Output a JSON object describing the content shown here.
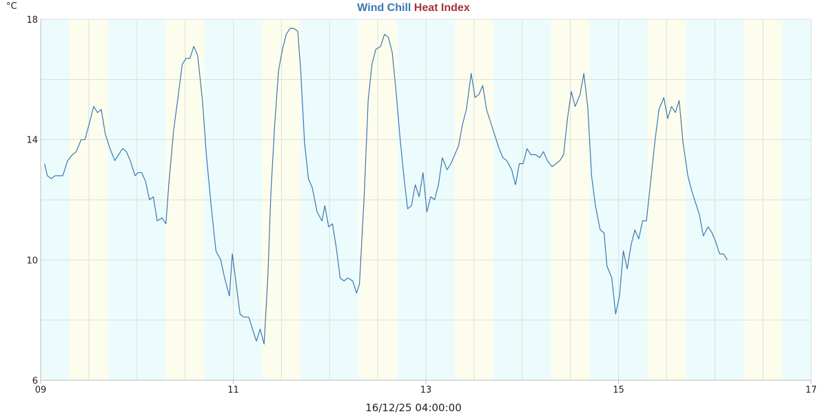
{
  "chart_data": {
    "type": "line",
    "title_parts": [
      {
        "text": "Wind Chill",
        "color": "#3a76b0"
      },
      {
        "text": "Heat Index",
        "color": "#a83238"
      }
    ],
    "y_unit": "°C",
    "timestamp": "16/12/25 04:00:00",
    "ylim": [
      6,
      18
    ],
    "yticks": [
      6,
      10,
      14,
      18
    ],
    "xlim_days": [
      9,
      17
    ],
    "xticks": [
      {
        "day": 9,
        "label": "09"
      },
      {
        "day": 11,
        "label": "11"
      },
      {
        "day": 13,
        "label": "13"
      },
      {
        "day": 15,
        "label": "15"
      },
      {
        "day": 17,
        "label": "17"
      }
    ],
    "grid": true,
    "day_bands_days": [
      9.3,
      9.7,
      10.3,
      10.7,
      11.3,
      11.7,
      12.3,
      12.7,
      13.3,
      13.7,
      14.3,
      14.7,
      15.3,
      15.7,
      16.3,
      16.7
    ],
    "colors": {
      "night": "#ecfcfc",
      "day": "#fdfdee",
      "line": "#3a76b0",
      "grid": "#dddddd",
      "axis": "#bbbbbb"
    },
    "series": [
      {
        "name": "Wind Chill",
        "color": "#3a76b0",
        "points": [
          [
            9.04,
            13.2
          ],
          [
            9.07,
            12.8
          ],
          [
            9.11,
            12.7
          ],
          [
            9.15,
            12.8
          ],
          [
            9.19,
            12.8
          ],
          [
            9.23,
            12.8
          ],
          [
            9.28,
            13.3
          ],
          [
            9.33,
            13.5
          ],
          [
            9.37,
            13.6
          ],
          [
            9.42,
            14.0
          ],
          [
            9.46,
            14.0
          ],
          [
            9.51,
            14.6
          ],
          [
            9.55,
            15.1
          ],
          [
            9.59,
            14.9
          ],
          [
            9.63,
            15.0
          ],
          [
            9.67,
            14.2
          ],
          [
            9.72,
            13.7
          ],
          [
            9.77,
            13.3
          ],
          [
            9.81,
            13.5
          ],
          [
            9.85,
            13.7
          ],
          [
            9.89,
            13.6
          ],
          [
            9.93,
            13.3
          ],
          [
            9.98,
            12.8
          ],
          [
            10.01,
            12.9
          ],
          [
            10.05,
            12.9
          ],
          [
            10.09,
            12.6
          ],
          [
            10.13,
            12.0
          ],
          [
            10.17,
            12.1
          ],
          [
            10.21,
            11.3
          ],
          [
            10.26,
            11.4
          ],
          [
            10.3,
            11.2
          ],
          [
            10.33,
            12.5
          ],
          [
            10.38,
            14.3
          ],
          [
            10.43,
            15.5
          ],
          [
            10.47,
            16.5
          ],
          [
            10.51,
            16.7
          ],
          [
            10.55,
            16.7
          ],
          [
            10.59,
            17.1
          ],
          [
            10.63,
            16.8
          ],
          [
            10.68,
            15.3
          ],
          [
            10.72,
            13.5
          ],
          [
            10.77,
            11.8
          ],
          [
            10.82,
            10.3
          ],
          [
            10.87,
            10.0
          ],
          [
            10.91,
            9.4
          ],
          [
            10.96,
            8.8
          ],
          [
            10.99,
            10.2
          ],
          [
            11.03,
            9.2
          ],
          [
            11.07,
            8.2
          ],
          [
            11.11,
            8.1
          ],
          [
            11.16,
            8.1
          ],
          [
            11.2,
            7.7
          ],
          [
            11.24,
            7.3
          ],
          [
            11.28,
            7.7
          ],
          [
            11.32,
            7.2
          ],
          [
            11.36,
            9.5
          ],
          [
            11.39,
            12.2
          ],
          [
            11.43,
            14.5
          ],
          [
            11.47,
            16.3
          ],
          [
            11.51,
            17.0
          ],
          [
            11.55,
            17.5
          ],
          [
            11.59,
            17.7
          ],
          [
            11.63,
            17.7
          ],
          [
            11.67,
            17.6
          ],
          [
            11.7,
            16.3
          ],
          [
            11.74,
            13.9
          ],
          [
            11.78,
            12.7
          ],
          [
            11.82,
            12.4
          ],
          [
            11.87,
            11.6
          ],
          [
            11.92,
            11.3
          ],
          [
            11.95,
            11.8
          ],
          [
            11.99,
            11.1
          ],
          [
            12.03,
            11.2
          ],
          [
            12.07,
            10.4
          ],
          [
            12.11,
            9.4
          ],
          [
            12.15,
            9.3
          ],
          [
            12.19,
            9.4
          ],
          [
            12.24,
            9.3
          ],
          [
            12.28,
            8.9
          ],
          [
            12.31,
            9.2
          ],
          [
            12.36,
            12.2
          ],
          [
            12.4,
            15.3
          ],
          [
            12.44,
            16.5
          ],
          [
            12.48,
            17.0
          ],
          [
            12.53,
            17.1
          ],
          [
            12.57,
            17.5
          ],
          [
            12.61,
            17.4
          ],
          [
            12.65,
            16.9
          ],
          [
            12.69,
            15.6
          ],
          [
            12.73,
            14.1
          ],
          [
            12.77,
            12.8
          ],
          [
            12.81,
            11.7
          ],
          [
            12.85,
            11.8
          ],
          [
            12.89,
            12.5
          ],
          [
            12.93,
            12.1
          ],
          [
            12.97,
            12.9
          ],
          [
            13.01,
            11.6
          ],
          [
            13.05,
            12.1
          ],
          [
            13.09,
            12.0
          ],
          [
            13.13,
            12.5
          ],
          [
            13.17,
            13.4
          ],
          [
            13.22,
            13.0
          ],
          [
            13.26,
            13.2
          ],
          [
            13.3,
            13.5
          ],
          [
            13.34,
            13.8
          ],
          [
            13.38,
            14.5
          ],
          [
            13.42,
            15.0
          ],
          [
            13.47,
            16.2
          ],
          [
            13.51,
            15.4
          ],
          [
            13.55,
            15.5
          ],
          [
            13.59,
            15.8
          ],
          [
            13.63,
            15.0
          ],
          [
            13.67,
            14.6
          ],
          [
            13.72,
            14.1
          ],
          [
            13.76,
            13.7
          ],
          [
            13.8,
            13.4
          ],
          [
            13.84,
            13.3
          ],
          [
            13.89,
            13.0
          ],
          [
            13.93,
            12.5
          ],
          [
            13.97,
            13.2
          ],
          [
            14.01,
            13.2
          ],
          [
            14.05,
            13.7
          ],
          [
            14.09,
            13.5
          ],
          [
            14.14,
            13.5
          ],
          [
            14.18,
            13.4
          ],
          [
            14.22,
            13.6
          ],
          [
            14.26,
            13.3
          ],
          [
            14.31,
            13.1
          ],
          [
            14.35,
            13.2
          ],
          [
            14.39,
            13.3
          ],
          [
            14.43,
            13.5
          ],
          [
            14.47,
            14.7
          ],
          [
            14.51,
            15.6
          ],
          [
            14.55,
            15.1
          ],
          [
            14.6,
            15.5
          ],
          [
            14.64,
            16.2
          ],
          [
            14.68,
            15.1
          ],
          [
            14.72,
            12.8
          ],
          [
            14.76,
            11.8
          ],
          [
            14.81,
            11.0
          ],
          [
            14.85,
            10.9
          ],
          [
            14.88,
            9.8
          ],
          [
            14.93,
            9.4
          ],
          [
            14.97,
            8.2
          ],
          [
            15.01,
            8.8
          ],
          [
            15.05,
            10.3
          ],
          [
            15.09,
            9.7
          ],
          [
            15.13,
            10.5
          ],
          [
            15.17,
            11.0
          ],
          [
            15.21,
            10.7
          ],
          [
            15.25,
            11.3
          ],
          [
            15.29,
            11.3
          ],
          [
            15.34,
            12.8
          ],
          [
            15.38,
            14.0
          ],
          [
            15.42,
            15.0
          ],
          [
            15.47,
            15.4
          ],
          [
            15.51,
            14.7
          ],
          [
            15.55,
            15.1
          ],
          [
            15.59,
            14.9
          ],
          [
            15.63,
            15.3
          ],
          [
            15.67,
            13.9
          ],
          [
            15.72,
            12.8
          ],
          [
            15.76,
            12.3
          ],
          [
            15.8,
            11.9
          ],
          [
            15.84,
            11.5
          ],
          [
            15.88,
            10.8
          ],
          [
            15.93,
            11.1
          ],
          [
            15.97,
            10.9
          ],
          [
            16.01,
            10.6
          ],
          [
            16.05,
            10.2
          ],
          [
            16.09,
            10.2
          ],
          [
            16.13,
            10.0
          ]
        ]
      }
    ]
  }
}
